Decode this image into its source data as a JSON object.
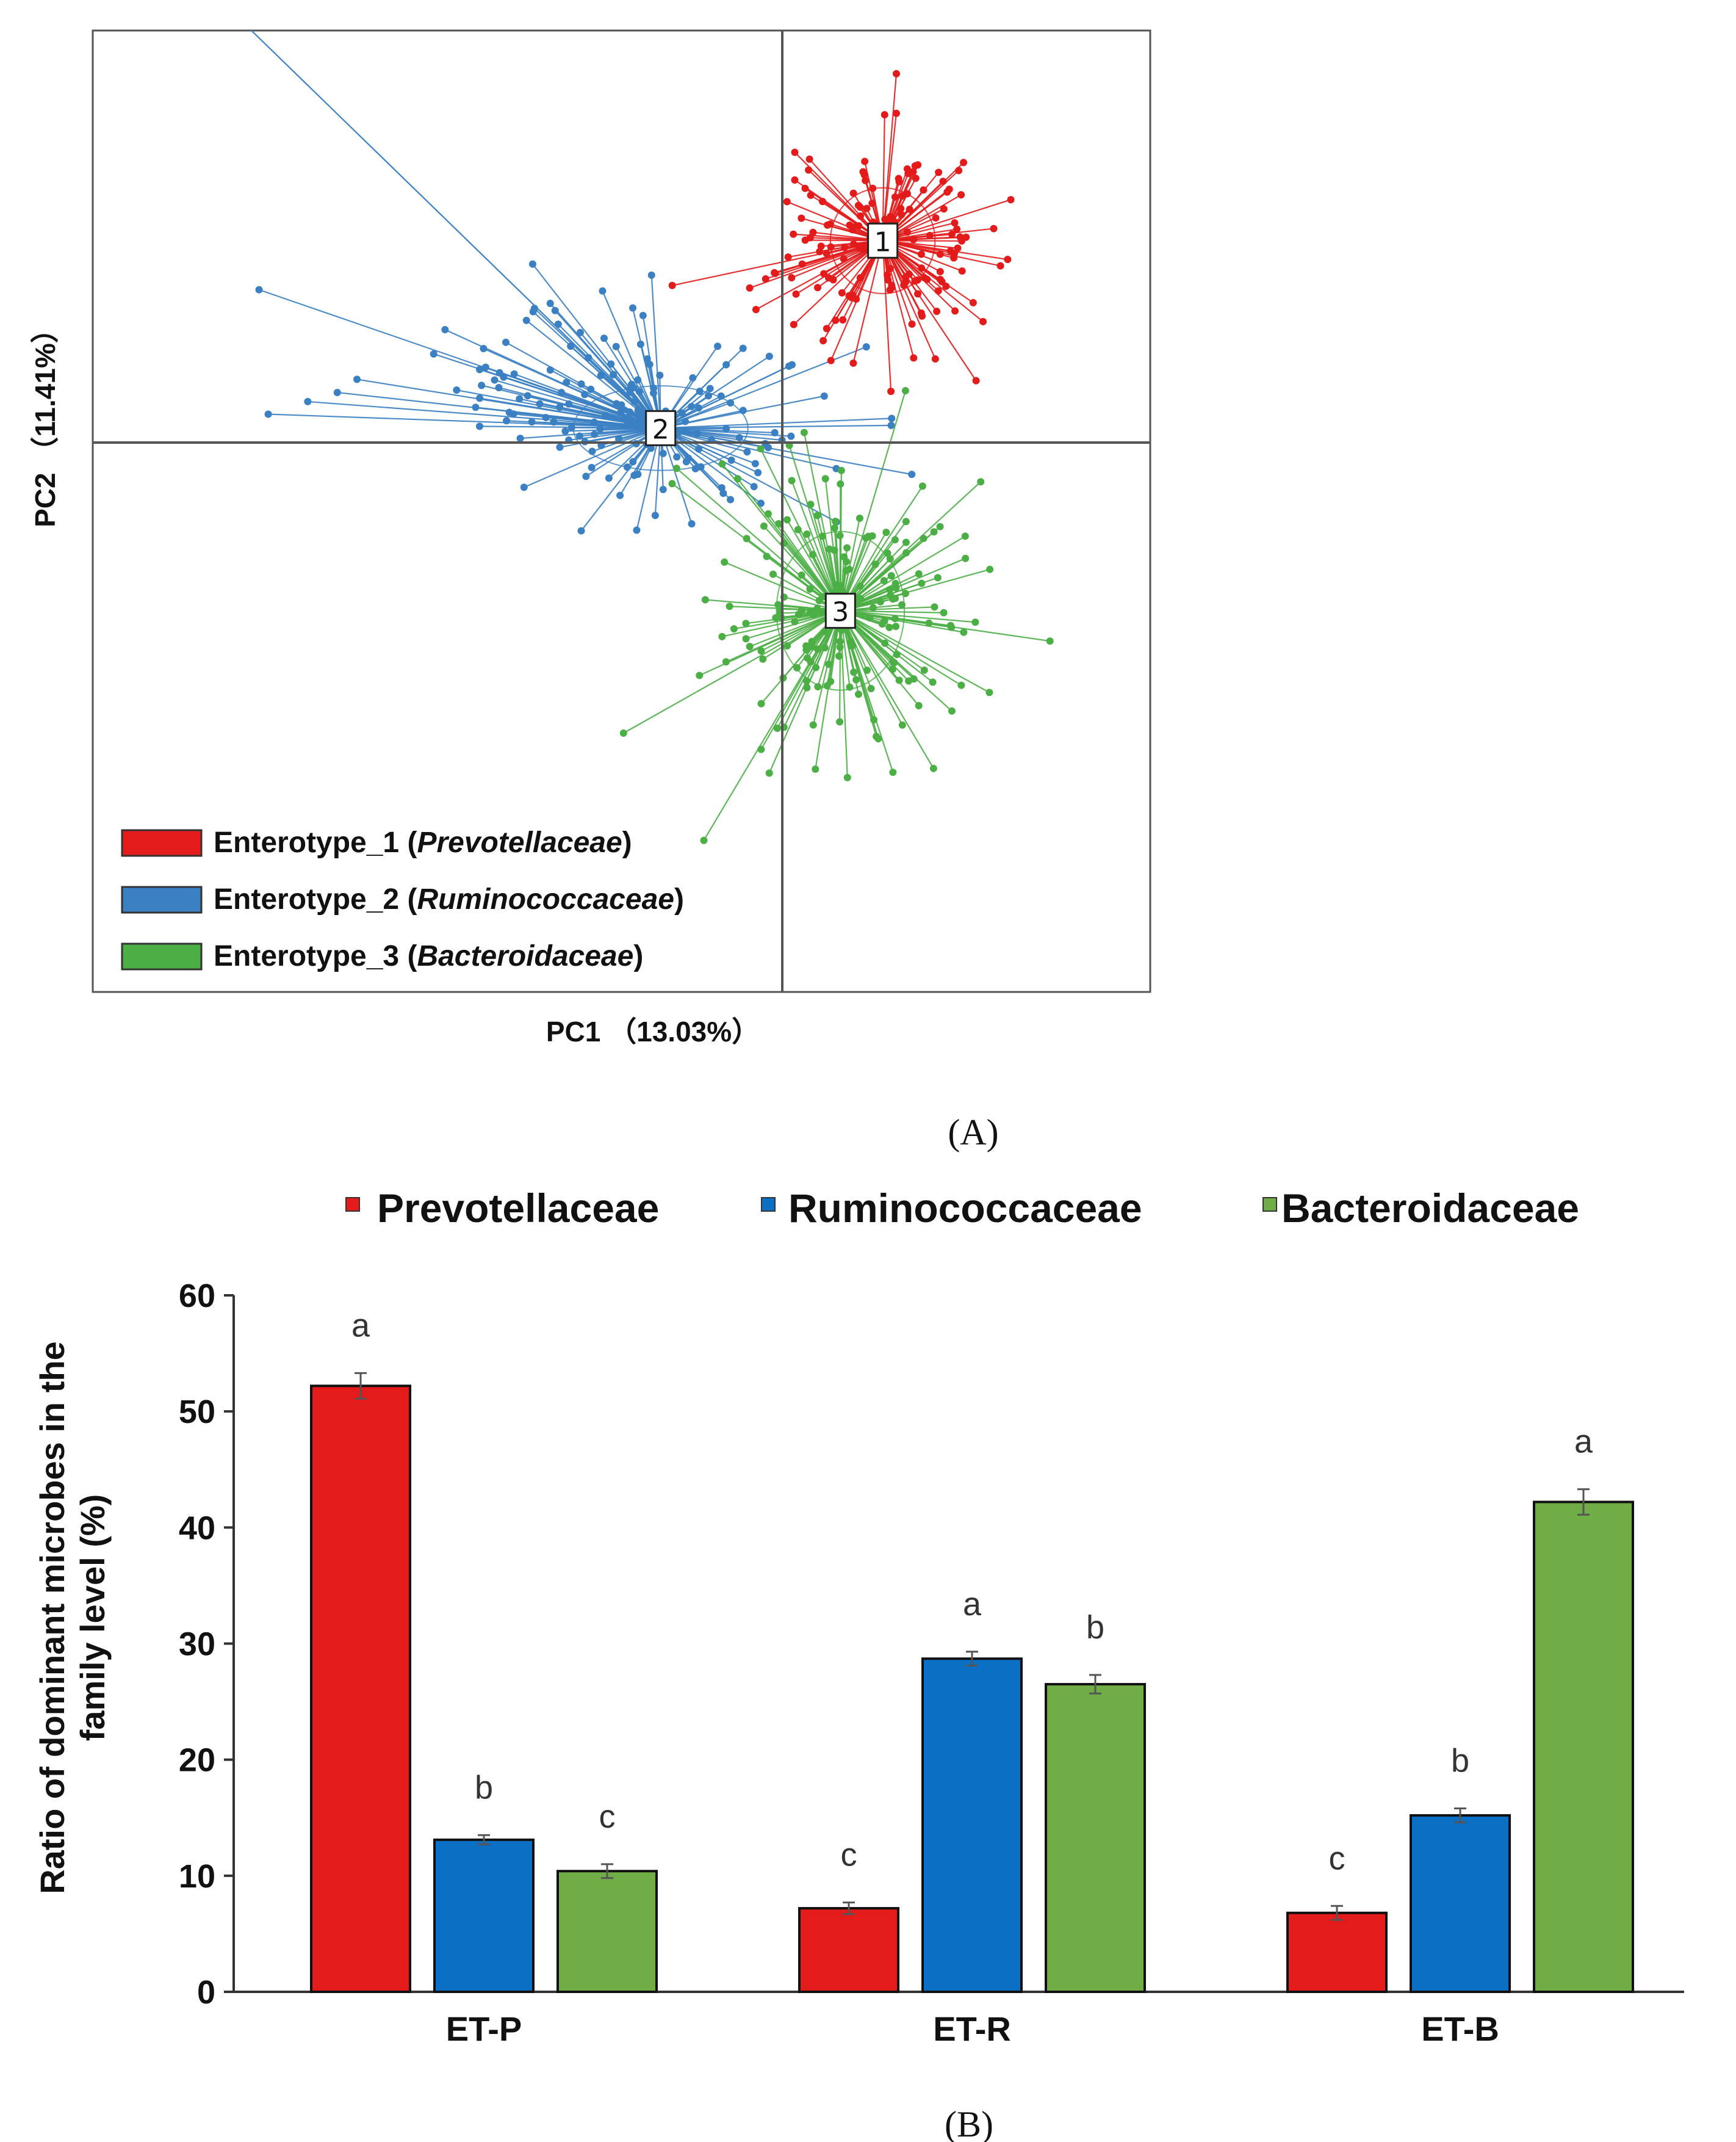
{
  "chart_data": [
    {
      "type": "scatter",
      "panel_label": "A",
      "xlabel": "PC1 （13.03%）",
      "ylabel": "PC2 （11.41%）",
      "xlim": [
        -1.0,
        1.0
      ],
      "ylim": [
        -1.0,
        1.0
      ],
      "center_lines": true,
      "legend_position": "bottom-left",
      "series": [
        {
          "name": "Enterotype_1",
          "italic": "Prevotellaceae",
          "color": "#e31b1b",
          "center": {
            "label": "1",
            "x": 0.19,
            "y": 0.42
          },
          "n": 160,
          "spread": [
            0.18,
            0.2
          ]
        },
        {
          "name": "Enterotype_2",
          "italic": "Ruminococcaceae",
          "color": "#3a80c3",
          "center": {
            "label": "2",
            "x": -0.23,
            "y": 0.03
          },
          "n": 170,
          "spread": [
            0.3,
            0.16
          ]
        },
        {
          "name": "Enterotype_3",
          "italic": "Bacteroidaceae",
          "color": "#4caf45",
          "center": {
            "label": "3",
            "x": 0.11,
            "y": -0.35
          },
          "n": 190,
          "spread": [
            0.22,
            0.3
          ]
        }
      ]
    },
    {
      "type": "bar",
      "panel_label": "B",
      "categories": [
        "ET-P",
        "ET-R",
        "ET-B"
      ],
      "ylabel": "Ratio of dominant microbes in the family level (%)",
      "ylim": [
        0,
        60
      ],
      "yticks": [
        0,
        10,
        20,
        30,
        40,
        50,
        60
      ],
      "legend_position": "top",
      "series": [
        {
          "name": "Prevotellaceae",
          "color": "#e31b1b",
          "values": [
            52.2,
            7.2,
            6.8
          ],
          "errors": [
            1.1,
            0.5,
            0.6
          ],
          "letters": [
            "a",
            "c",
            "c"
          ]
        },
        {
          "name": "Ruminococcaceae",
          "color": "#0b6fc4",
          "values": [
            13.1,
            28.7,
            15.2
          ],
          "errors": [
            0.4,
            0.6,
            0.6
          ],
          "letters": [
            "b",
            "a",
            "b"
          ]
        },
        {
          "name": "Bacteroidaceae",
          "color": "#70ad47",
          "values": [
            10.4,
            26.5,
            42.2
          ],
          "errors": [
            0.6,
            0.8,
            1.1
          ],
          "letters": [
            "c",
            "b",
            "a"
          ]
        }
      ]
    }
  ],
  "captions": {
    "a": "(A)",
    "b": "(B)"
  }
}
